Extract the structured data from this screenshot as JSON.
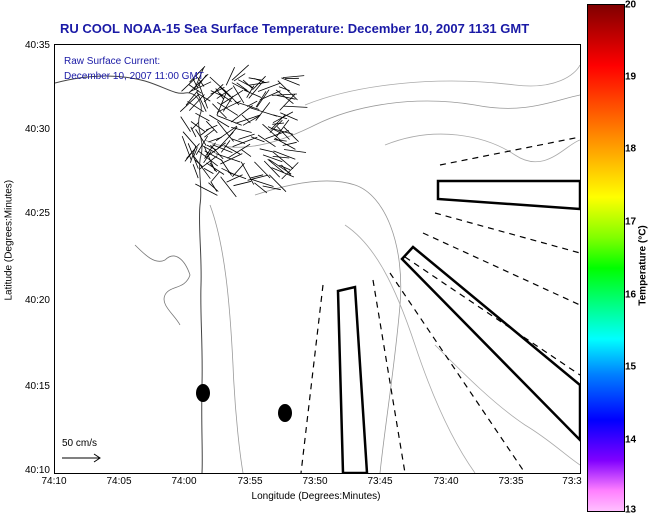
{
  "title": "RU COOL  NOAA-15  Sea Surface Temperature:  December 10, 2007 1131 GMT",
  "annotation": {
    "line1": "Raw Surface Current:",
    "line2": "December 10, 2007 11:00 GMT"
  },
  "axes": {
    "xlabel": "Longitude (Degrees:Minutes)",
    "ylabel": "Latitude (Degrees:Minutes)",
    "x_ticks": [
      "74:10",
      "74:05",
      "74:00",
      "73:55",
      "73:50",
      "73:45",
      "73:40",
      "73:35",
      "73:3"
    ],
    "y_ticks": [
      "40:35",
      "40:30",
      "40:25",
      "40:20",
      "40:15",
      "40:10"
    ]
  },
  "scale": {
    "label": "50 cm/s"
  },
  "colorbar": {
    "label": "Temperature (°C)",
    "ticks": [
      "20",
      "19",
      "18",
      "17",
      "16",
      "15",
      "14",
      "13"
    ]
  }
}
